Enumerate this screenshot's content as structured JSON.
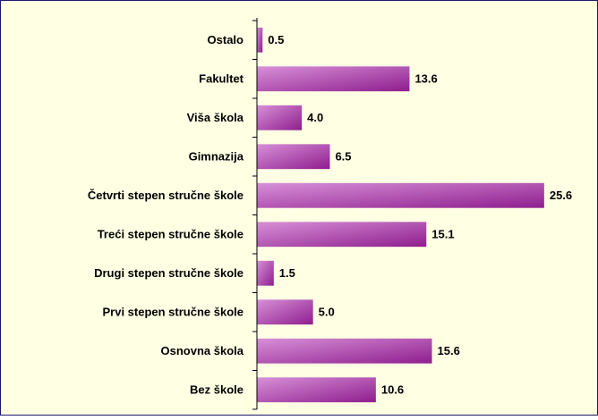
{
  "chart_data": {
    "type": "bar",
    "orientation": "horizontal",
    "categories": [
      "Ostalo",
      "Fakultet",
      "Viša škola",
      "Gimnazija",
      "Četvrti stepen stručne škole",
      "Treći stepen stručne škole",
      "Drugi stepen stručne škole",
      "Prvi stepen stručne škole",
      "Osnovna škola",
      "Bez škole"
    ],
    "values": [
      0.5,
      13.6,
      4.0,
      6.5,
      25.6,
      15.1,
      1.5,
      5.0,
      15.6,
      10.6
    ],
    "value_labels": [
      "0.5",
      "13.6",
      "4.0",
      "6.5",
      "25.6",
      "15.1",
      "1.5",
      "5.0",
      "15.6",
      "10.6"
    ],
    "color": "#8e1e8e",
    "xlim": [
      0,
      30
    ]
  }
}
